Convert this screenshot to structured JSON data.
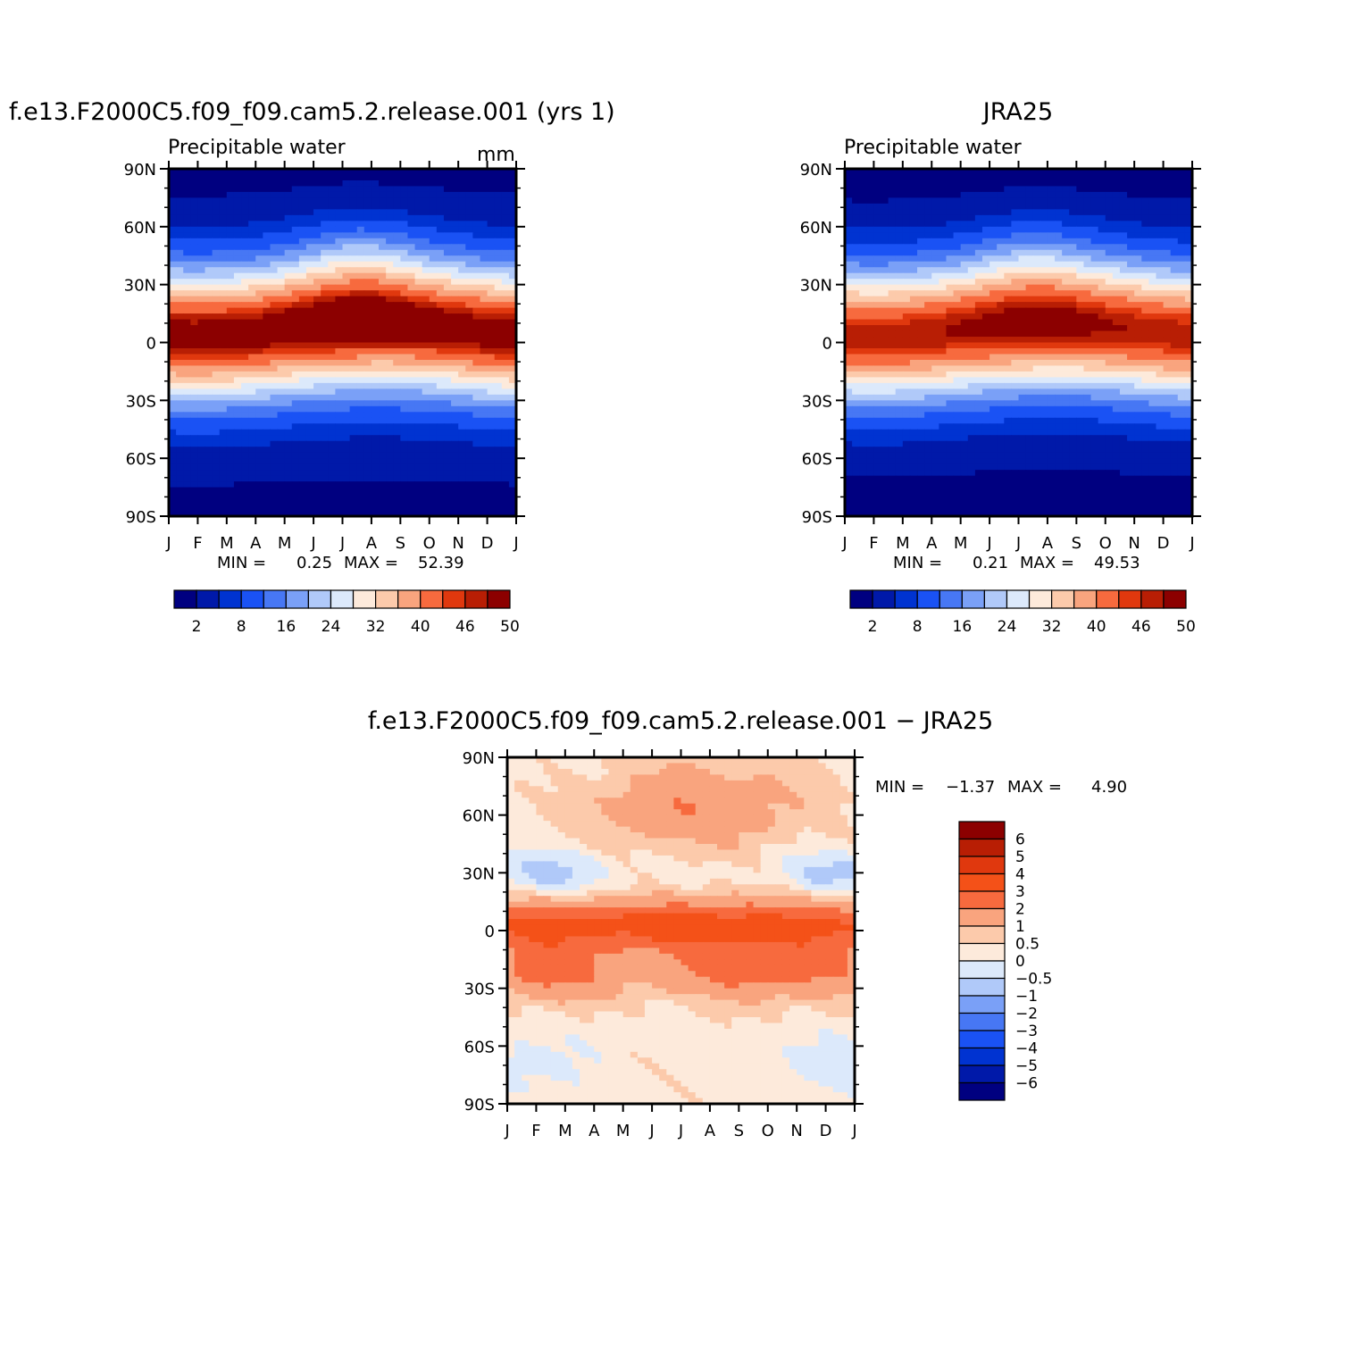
{
  "months": [
    "J",
    "F",
    "M",
    "A",
    "M",
    "J",
    "J",
    "A",
    "S",
    "O",
    "N",
    "D",
    "J"
  ],
  "lat_ticks": [
    {
      "label": "90N",
      "lat": 90
    },
    {
      "label": "60N",
      "lat": 60
    },
    {
      "label": "30N",
      "lat": 30
    },
    {
      "label": "0",
      "lat": 0
    },
    {
      "label": "30S",
      "lat": -30
    },
    {
      "label": "60S",
      "lat": -60
    },
    {
      "label": "90S",
      "lat": -90
    }
  ],
  "abs_colors": [
    "#000080",
    "#0019a9",
    "#0033d1",
    "#1a52f4",
    "#4777f4",
    "#7aa0f7",
    "#b0c9f9",
    "#dce9fb",
    "#fdeadb",
    "#fccaab",
    "#f9a47e",
    "#f76a3e",
    "#e0380e",
    "#b81e04",
    "#8c0000"
  ],
  "abs_levels": [
    0,
    2,
    5,
    8,
    12,
    16,
    20,
    24,
    28,
    32,
    36,
    40,
    44,
    46,
    48,
    50
  ],
  "diff_colors": [
    "#000080",
    "#0019a9",
    "#0033d1",
    "#1a52f4",
    "#4777f4",
    "#7aa0f7",
    "#b0c9f9",
    "#dce9fb",
    "#fdeadb",
    "#fccaab",
    "#f9a47e",
    "#f76a3e",
    "#f45118",
    "#e0380e",
    "#b81e04",
    "#8c0000"
  ],
  "diff_levels": [
    -8,
    -6,
    -5,
    -4,
    -3,
    -2,
    -1,
    -0.5,
    0,
    0.5,
    1,
    2,
    3,
    4,
    5,
    6,
    8
  ],
  "chart_data": [
    {
      "type": "heatmap",
      "title": "f.e13.F2000C5.f09_f09.cam5.2.release.001 (yrs 1)",
      "subtitle": "Precipitable water",
      "units": "mm",
      "x": [
        "J",
        "F",
        "M",
        "A",
        "M",
        "J",
        "J",
        "A",
        "S",
        "O",
        "N",
        "D",
        "J"
      ],
      "ylim": [
        -90,
        90
      ],
      "min_label": "MIN =",
      "min_value": "0.25",
      "max_label": "MAX =",
      "max_value": "52.39",
      "colorbar_labels": [
        "2",
        "8",
        "16",
        "24",
        "32",
        "40",
        "46",
        "50"
      ]
    },
    {
      "type": "heatmap",
      "title": "JRA25",
      "subtitle": "Precipitable water",
      "x": [
        "J",
        "F",
        "M",
        "A",
        "M",
        "J",
        "J",
        "A",
        "S",
        "O",
        "N",
        "D",
        "J"
      ],
      "ylim": [
        -90,
        90
      ],
      "min_label": "MIN =",
      "min_value": "0.21",
      "max_label": "MAX =",
      "max_value": "49.53",
      "colorbar_labels": [
        "2",
        "8",
        "16",
        "24",
        "32",
        "40",
        "46",
        "50"
      ]
    },
    {
      "type": "heatmap",
      "title": "f.e13.F2000C5.f09_f09.cam5.2.release.001 − JRA25",
      "x": [
        "J",
        "F",
        "M",
        "A",
        "M",
        "J",
        "J",
        "A",
        "S",
        "O",
        "N",
        "D",
        "J"
      ],
      "ylim": [
        -90,
        90
      ],
      "min_label": "MIN =",
      "min_value": "−1.37",
      "max_label": "MAX =",
      "max_value": "4.90",
      "colorbar_labels": [
        "6",
        "5",
        "4",
        "3",
        "2",
        "1",
        "0.5",
        "0",
        "−0.5",
        "−1",
        "−2",
        "−3",
        "−4",
        "−5",
        "−6"
      ]
    }
  ]
}
